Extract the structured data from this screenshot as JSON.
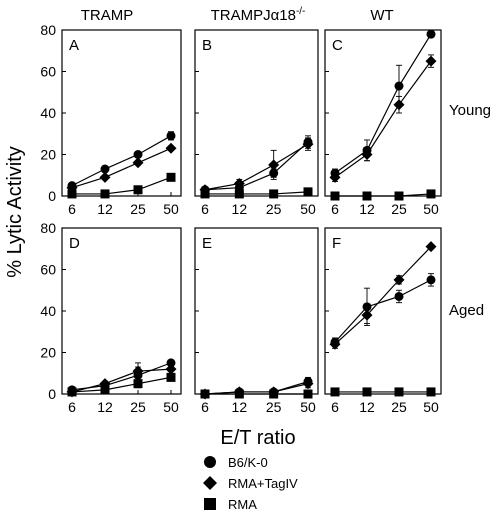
{
  "figure": {
    "ylabel": "% Lytic Activity",
    "xlabel": "E/T ratio",
    "column_titles": [
      "TRAMP",
      "TRAMPJα18",
      "WT"
    ],
    "column_title_superscript": "-/-",
    "row_labels": [
      "Young",
      "Aged"
    ],
    "legend": [
      {
        "label": "B6/K-0",
        "marker": "circle"
      },
      {
        "label": "RMA+TagIV",
        "marker": "diamond"
      },
      {
        "label": "RMA",
        "marker": "square"
      }
    ],
    "x_tick_labels": [
      "6",
      "12",
      "25",
      "50"
    ],
    "y_tick_labels": [
      "0",
      "20",
      "40",
      "60",
      "80"
    ]
  },
  "chart_data": [
    {
      "type": "line",
      "panel": "A",
      "x": [
        6,
        12,
        25,
        50
      ],
      "ylim": [
        0,
        80
      ],
      "series": [
        {
          "name": "B6/K-0",
          "marker": "circle",
          "values": [
            5,
            13,
            20,
            29
          ],
          "errors": [
            1,
            1,
            1,
            2
          ]
        },
        {
          "name": "RMA+TagIV",
          "marker": "diamond",
          "values": [
            4,
            9,
            16,
            23
          ],
          "errors": [
            1,
            1,
            1,
            1
          ]
        },
        {
          "name": "RMA",
          "marker": "square",
          "values": [
            1,
            1,
            3,
            9
          ],
          "errors": [
            0,
            0,
            0,
            0
          ]
        }
      ]
    },
    {
      "type": "line",
      "panel": "B",
      "x": [
        6,
        12,
        25,
        50
      ],
      "ylim": [
        0,
        80
      ],
      "series": [
        {
          "name": "B6/K-0",
          "marker": "circle",
          "values": [
            3,
            4,
            11,
            26
          ],
          "errors": [
            1,
            2,
            2,
            3
          ]
        },
        {
          "name": "RMA+TagIV",
          "marker": "diamond",
          "values": [
            3,
            6,
            15,
            25
          ],
          "errors": [
            1,
            2,
            7,
            3
          ]
        },
        {
          "name": "RMA",
          "marker": "square",
          "values": [
            1,
            1,
            1,
            2
          ],
          "errors": [
            0,
            0,
            0,
            0
          ]
        }
      ]
    },
    {
      "type": "line",
      "panel": "C",
      "x": [
        6,
        12,
        25,
        50
      ],
      "ylim": [
        0,
        80
      ],
      "series": [
        {
          "name": "B6/K-0",
          "marker": "circle",
          "values": [
            11,
            22,
            53,
            78
          ],
          "errors": [
            2,
            5,
            10,
            1
          ]
        },
        {
          "name": "RMA+TagIV",
          "marker": "diamond",
          "values": [
            9,
            20,
            44,
            65
          ],
          "errors": [
            2,
            3,
            4,
            3
          ]
        },
        {
          "name": "RMA",
          "marker": "square",
          "values": [
            0,
            0,
            0,
            1
          ],
          "errors": [
            0,
            0,
            0,
            0
          ]
        }
      ]
    },
    {
      "type": "line",
      "panel": "D",
      "x": [
        6,
        12,
        25,
        50
      ],
      "ylim": [
        0,
        80
      ],
      "series": [
        {
          "name": "B6/K-0",
          "marker": "circle",
          "values": [
            2,
            4,
            9,
            15
          ],
          "errors": [
            1,
            1,
            6,
            1
          ]
        },
        {
          "name": "RMA+TagIV",
          "marker": "diamond",
          "values": [
            1,
            5,
            11,
            12
          ],
          "errors": [
            1,
            1,
            2,
            1
          ]
        },
        {
          "name": "RMA",
          "marker": "square",
          "values": [
            1,
            2,
            5,
            8
          ],
          "errors": [
            0,
            0,
            0,
            0
          ]
        }
      ]
    },
    {
      "type": "line",
      "panel": "E",
      "x": [
        6,
        12,
        25,
        50
      ],
      "ylim": [
        0,
        80
      ],
      "series": [
        {
          "name": "B6/K-0",
          "marker": "circle",
          "values": [
            0,
            1,
            1,
            6
          ],
          "errors": [
            0,
            0,
            0,
            2
          ]
        },
        {
          "name": "RMA+TagIV",
          "marker": "diamond",
          "values": [
            0,
            1,
            1,
            5
          ],
          "errors": [
            0,
            0,
            0,
            2
          ]
        },
        {
          "name": "RMA",
          "marker": "square",
          "values": [
            0,
            0,
            0,
            0
          ],
          "errors": [
            0,
            0,
            0,
            0
          ]
        }
      ]
    },
    {
      "type": "line",
      "panel": "F",
      "x": [
        6,
        12,
        25,
        50
      ],
      "ylim": [
        0,
        80
      ],
      "series": [
        {
          "name": "B6/K-0",
          "marker": "circle",
          "values": [
            25,
            42,
            47,
            55
          ],
          "errors": [
            2,
            9,
            3,
            3
          ]
        },
        {
          "name": "RMA+TagIV",
          "marker": "diamond",
          "values": [
            24,
            38,
            55,
            71
          ],
          "errors": [
            2,
            4,
            2,
            1
          ]
        },
        {
          "name": "RMA",
          "marker": "square",
          "values": [
            1,
            1,
            1,
            1
          ],
          "errors": [
            0,
            0,
            0,
            0
          ]
        }
      ]
    }
  ]
}
